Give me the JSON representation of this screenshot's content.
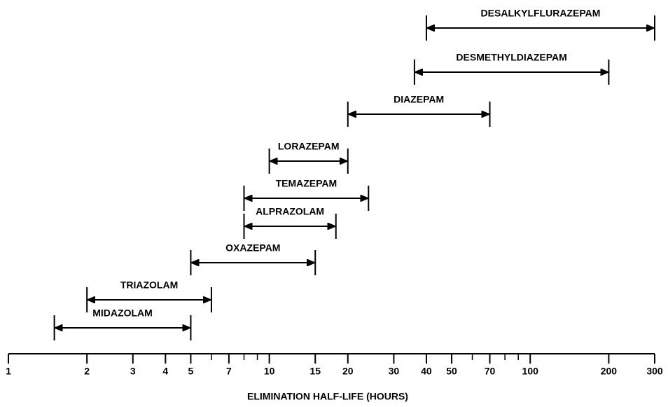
{
  "chart_data": {
    "type": "range",
    "xlabel": "ELIMINATION HALF-LIFE (HOURS)",
    "categories": [
      "DESALKYLFLURAZEPAM",
      "DESMETHYLDIAZEPAM",
      "DIAZEPAM",
      "LORAZEPAM",
      "TEMAZEPAM",
      "ALPRAZOLAM",
      "OXAZEPAM",
      "TRIAZOLAM",
      "MIDAZOLAM"
    ],
    "low": [
      40,
      36,
      20,
      10,
      8,
      8,
      5,
      2,
      1.5
    ],
    "high": [
      300,
      200,
      70,
      20,
      24,
      18,
      15,
      6,
      5
    ],
    "xlim": [
      1,
      300
    ],
    "xscale": "log",
    "xticks": [
      1,
      2,
      3,
      4,
      5,
      7,
      10,
      15,
      20,
      30,
      40,
      50,
      70,
      100,
      200,
      300
    ],
    "xminorticks": [
      6,
      8,
      9,
      60,
      80,
      90
    ]
  }
}
